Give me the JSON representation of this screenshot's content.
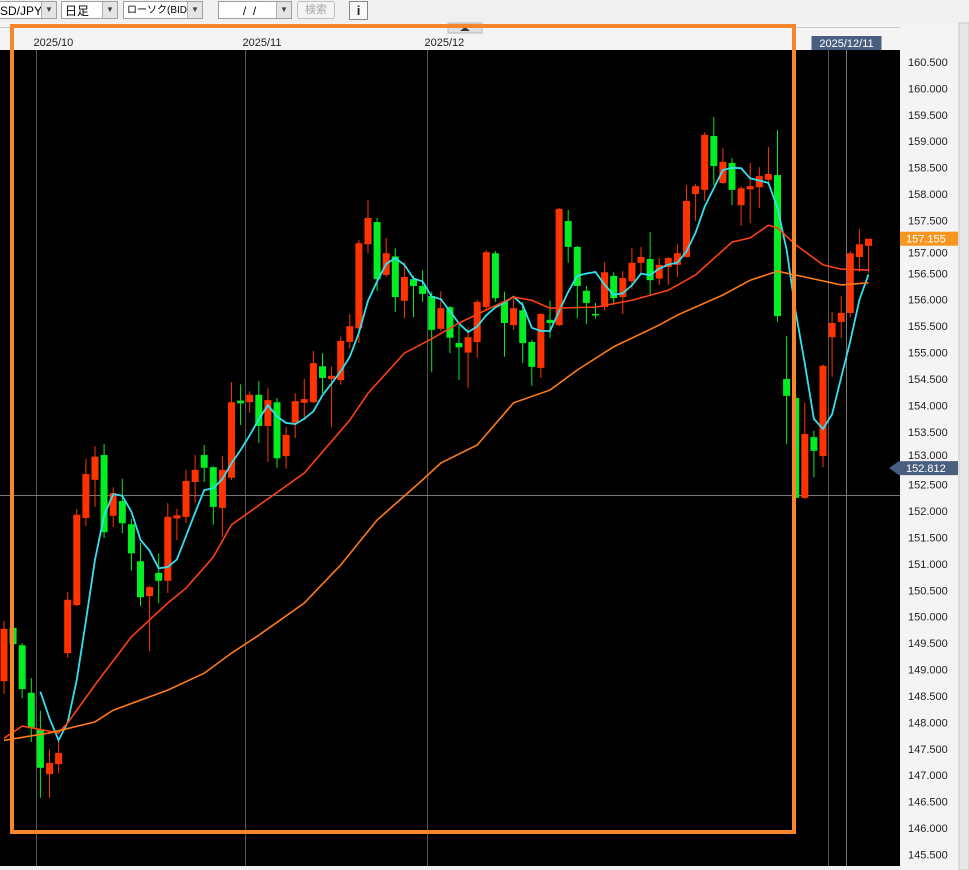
{
  "toolbar": {
    "symbol": "SD/JPY",
    "timeframe": "日足",
    "chart_type": "ローソク(BID)",
    "date_input": " /  / ",
    "search_label": "検索",
    "info_icon": "info-icon",
    "collapse_icon": "triangle-up-icon"
  },
  "colors": {
    "up": "#ff3300",
    "down": "#00ee22",
    "ma_short": "#33e0f0",
    "ma_mid": "#ff4010",
    "ma_long": "#ff7a1a",
    "annotation_box": "#f7852a",
    "last_price_bg": "#f7961e",
    "marker_bg": "#4a5f80"
  },
  "chart_data": {
    "type": "candlestick",
    "y_range": [
      145.5,
      160.5
    ],
    "y_ticks": [
      "160.500",
      "160.000",
      "159.500",
      "159.000",
      "158.500",
      "158.000",
      "157.500",
      "157.000",
      "156.500",
      "156.000",
      "155.500",
      "155.000",
      "154.500",
      "154.000",
      "153.500",
      "153.000",
      "152.500",
      "152.000",
      "151.500",
      "151.000",
      "150.500",
      "150.000",
      "149.500",
      "149.000",
      "148.500",
      "148.000",
      "147.500",
      "147.000",
      "146.500",
      "146.000",
      "145.500"
    ],
    "month_labels": [
      {
        "label": "2025/10",
        "candle": 4
      },
      {
        "label": "2025/11",
        "candle": 27
      },
      {
        "label": "2025/12",
        "candle": 47
      }
    ],
    "extra_gridline_candle": 91,
    "crosshair": {
      "date_label": "2025/12/11",
      "candle": 93,
      "price": 152.3
    },
    "last_price_label": "157.155",
    "last_price": 157.155,
    "marker_label": "152.812",
    "marker_price": 152.812,
    "candles_ohlc": [
      [
        148.78,
        149.92,
        148.54,
        149.77
      ],
      [
        149.79,
        149.85,
        149.4,
        149.48
      ],
      [
        149.46,
        149.5,
        148.46,
        148.63
      ],
      [
        148.56,
        148.84,
        147.63,
        147.89
      ],
      [
        147.86,
        148.22,
        146.57,
        147.14
      ],
      [
        147.02,
        147.49,
        146.57,
        147.23
      ],
      [
        147.21,
        147.67,
        147.04,
        147.42
      ],
      [
        149.31,
        150.47,
        149.22,
        150.32
      ],
      [
        150.22,
        152.04,
        150.2,
        151.93
      ],
      [
        151.87,
        152.99,
        151.72,
        152.7
      ],
      [
        152.59,
        153.23,
        152.08,
        153.03
      ],
      [
        153.06,
        153.27,
        151.49,
        151.6
      ],
      [
        151.91,
        152.45,
        151.7,
        152.34
      ],
      [
        152.19,
        152.61,
        151.58,
        151.77
      ],
      [
        151.75,
        151.85,
        150.87,
        151.2
      ],
      [
        151.05,
        151.4,
        150.2,
        150.37
      ],
      [
        150.39,
        150.58,
        149.35,
        150.56
      ],
      [
        150.83,
        151.2,
        150.26,
        150.68
      ],
      [
        150.68,
        152.15,
        150.45,
        151.89
      ],
      [
        151.86,
        152.04,
        151.45,
        151.92
      ],
      [
        151.89,
        152.78,
        151.77,
        152.57
      ],
      [
        152.55,
        153.06,
        152.15,
        152.78
      ],
      [
        153.06,
        153.25,
        152.55,
        152.82
      ],
      [
        152.83,
        152.85,
        151.74,
        152.08
      ],
      [
        152.06,
        153.04,
        151.51,
        152.78
      ],
      [
        152.63,
        154.44,
        152.59,
        154.06
      ],
      [
        154.09,
        154.4,
        153.63,
        154.04
      ],
      [
        154.06,
        154.27,
        153.86,
        154.2
      ],
      [
        154.2,
        154.46,
        153.29,
        153.61
      ],
      [
        153.61,
        154.33,
        152.93,
        154.1
      ],
      [
        154.06,
        154.14,
        152.82,
        153.0
      ],
      [
        153.04,
        153.59,
        152.8,
        153.44
      ],
      [
        153.67,
        154.23,
        153.38,
        154.08
      ],
      [
        154.05,
        154.5,
        153.72,
        154.12
      ],
      [
        154.06,
        155.03,
        154.04,
        154.8
      ],
      [
        154.74,
        154.99,
        154.23,
        154.52
      ],
      [
        154.5,
        154.74,
        153.59,
        154.56
      ],
      [
        154.48,
        155.3,
        154.39,
        155.22
      ],
      [
        155.2,
        155.73,
        155.08,
        155.5
      ],
      [
        155.46,
        157.13,
        155.18,
        157.07
      ],
      [
        157.05,
        157.89,
        156.88,
        157.55
      ],
      [
        157.47,
        157.55,
        156.17,
        156.39
      ],
      [
        156.47,
        157.17,
        156.43,
        156.88
      ],
      [
        156.82,
        156.97,
        155.77,
        156.05
      ],
      [
        155.98,
        156.71,
        155.65,
        156.43
      ],
      [
        156.39,
        156.45,
        155.67,
        156.26
      ],
      [
        156.26,
        156.56,
        155.96,
        156.11
      ],
      [
        156.07,
        156.15,
        154.63,
        155.43
      ],
      [
        155.45,
        156.16,
        155.4,
        155.84
      ],
      [
        155.86,
        155.88,
        154.99,
        155.28
      ],
      [
        155.18,
        155.52,
        154.48,
        155.1
      ],
      [
        155.0,
        155.48,
        154.33,
        155.29
      ],
      [
        155.2,
        156.0,
        154.9,
        155.96
      ],
      [
        155.86,
        156.94,
        155.8,
        156.9
      ],
      [
        156.88,
        156.92,
        155.96,
        156.03
      ],
      [
        155.96,
        156.15,
        154.92,
        155.56
      ],
      [
        155.52,
        156.05,
        155.43,
        155.84
      ],
      [
        155.8,
        155.96,
        154.8,
        155.18
      ],
      [
        155.2,
        155.24,
        154.37,
        154.73
      ],
      [
        154.71,
        155.75,
        154.52,
        155.73
      ],
      [
        155.62,
        155.98,
        155.28,
        155.56
      ],
      [
        155.52,
        157.74,
        155.5,
        157.72
      ],
      [
        157.49,
        157.7,
        156.7,
        157.0
      ],
      [
        157.0,
        157.02,
        155.65,
        156.26
      ],
      [
        156.17,
        156.26,
        155.54,
        155.94
      ],
      [
        155.73,
        155.94,
        155.64,
        155.71
      ],
      [
        155.86,
        156.71,
        155.8,
        156.52
      ],
      [
        156.45,
        156.52,
        155.9,
        156.03
      ],
      [
        156.05,
        156.54,
        155.73,
        156.41
      ],
      [
        156.35,
        156.98,
        156.2,
        156.7
      ],
      [
        156.7,
        157.0,
        156.5,
        156.81
      ],
      [
        156.77,
        157.28,
        156.09,
        156.37
      ],
      [
        156.4,
        156.79,
        156.28,
        156.66
      ],
      [
        156.62,
        156.81,
        156.28,
        156.79
      ],
      [
        156.66,
        157.05,
        156.43,
        156.88
      ],
      [
        156.81,
        158.17,
        156.8,
        157.87
      ],
      [
        158.0,
        158.19,
        157.49,
        158.15
      ],
      [
        158.08,
        159.17,
        157.87,
        159.12
      ],
      [
        159.1,
        159.46,
        158.17,
        158.53
      ],
      [
        158.21,
        158.87,
        158.19,
        158.61
      ],
      [
        158.59,
        158.68,
        157.79,
        158.08
      ],
      [
        157.79,
        158.15,
        157.4,
        158.11
      ],
      [
        158.09,
        158.59,
        157.45,
        158.15
      ],
      [
        158.13,
        158.51,
        157.74,
        158.34
      ],
      [
        158.27,
        158.89,
        158.2,
        158.38
      ],
      [
        158.36,
        159.21,
        155.58,
        155.69
      ],
      [
        154.5,
        155.31,
        153.27,
        154.18
      ],
      [
        154.14,
        154.2,
        152.23,
        152.25
      ],
      [
        152.25,
        154.05,
        152.23,
        153.46
      ],
      [
        153.4,
        153.52,
        152.64,
        153.14
      ],
      [
        153.04,
        154.78,
        152.83,
        154.75
      ],
      [
        155.29,
        155.77,
        154.54,
        155.56
      ],
      [
        155.58,
        156.07,
        155.27,
        155.75
      ],
      [
        155.75,
        156.92,
        155.67,
        156.88
      ],
      [
        156.81,
        157.34,
        156.53,
        157.05
      ],
      [
        157.02,
        157.15,
        156.51,
        157.155
      ]
    ],
    "ma_short_period": 5,
    "ma_mid_points": [
      [
        0,
        147.7
      ],
      [
        2,
        147.93
      ],
      [
        6,
        147.8
      ],
      [
        7,
        147.99
      ],
      [
        10,
        148.71
      ],
      [
        14,
        149.62
      ],
      [
        18,
        150.26
      ],
      [
        20,
        150.54
      ],
      [
        23,
        151.13
      ],
      [
        25,
        151.74
      ],
      [
        33,
        152.72
      ],
      [
        38,
        153.72
      ],
      [
        40,
        154.23
      ],
      [
        44,
        154.99
      ],
      [
        47,
        155.26
      ],
      [
        50,
        155.56
      ],
      [
        56,
        156.05
      ],
      [
        58,
        155.99
      ],
      [
        60,
        155.84
      ],
      [
        65,
        155.86
      ],
      [
        69,
        155.99
      ],
      [
        73,
        156.18
      ],
      [
        76,
        156.47
      ],
      [
        80,
        157.09
      ],
      [
        82,
        157.17
      ],
      [
        84,
        157.41
      ],
      [
        85,
        157.36
      ],
      [
        87,
        157.04
      ],
      [
        90,
        156.66
      ],
      [
        92,
        156.58
      ],
      [
        95,
        156.56
      ]
    ],
    "ma_long_points": [
      [
        0,
        147.66
      ],
      [
        5,
        147.8
      ],
      [
        10,
        148.01
      ],
      [
        12,
        148.23
      ],
      [
        18,
        148.61
      ],
      [
        22,
        148.93
      ],
      [
        25,
        149.31
      ],
      [
        28,
        149.65
      ],
      [
        33,
        150.26
      ],
      [
        37,
        150.98
      ],
      [
        41,
        151.83
      ],
      [
        46,
        152.59
      ],
      [
        48,
        152.91
      ],
      [
        52,
        153.25
      ],
      [
        56,
        154.05
      ],
      [
        60,
        154.29
      ],
      [
        63,
        154.67
      ],
      [
        67,
        155.11
      ],
      [
        72,
        155.52
      ],
      [
        74,
        155.71
      ],
      [
        79,
        156.09
      ],
      [
        82,
        156.37
      ],
      [
        85,
        156.54
      ],
      [
        88,
        156.43
      ],
      [
        92,
        156.28
      ],
      [
        95,
        156.32
      ]
    ]
  }
}
